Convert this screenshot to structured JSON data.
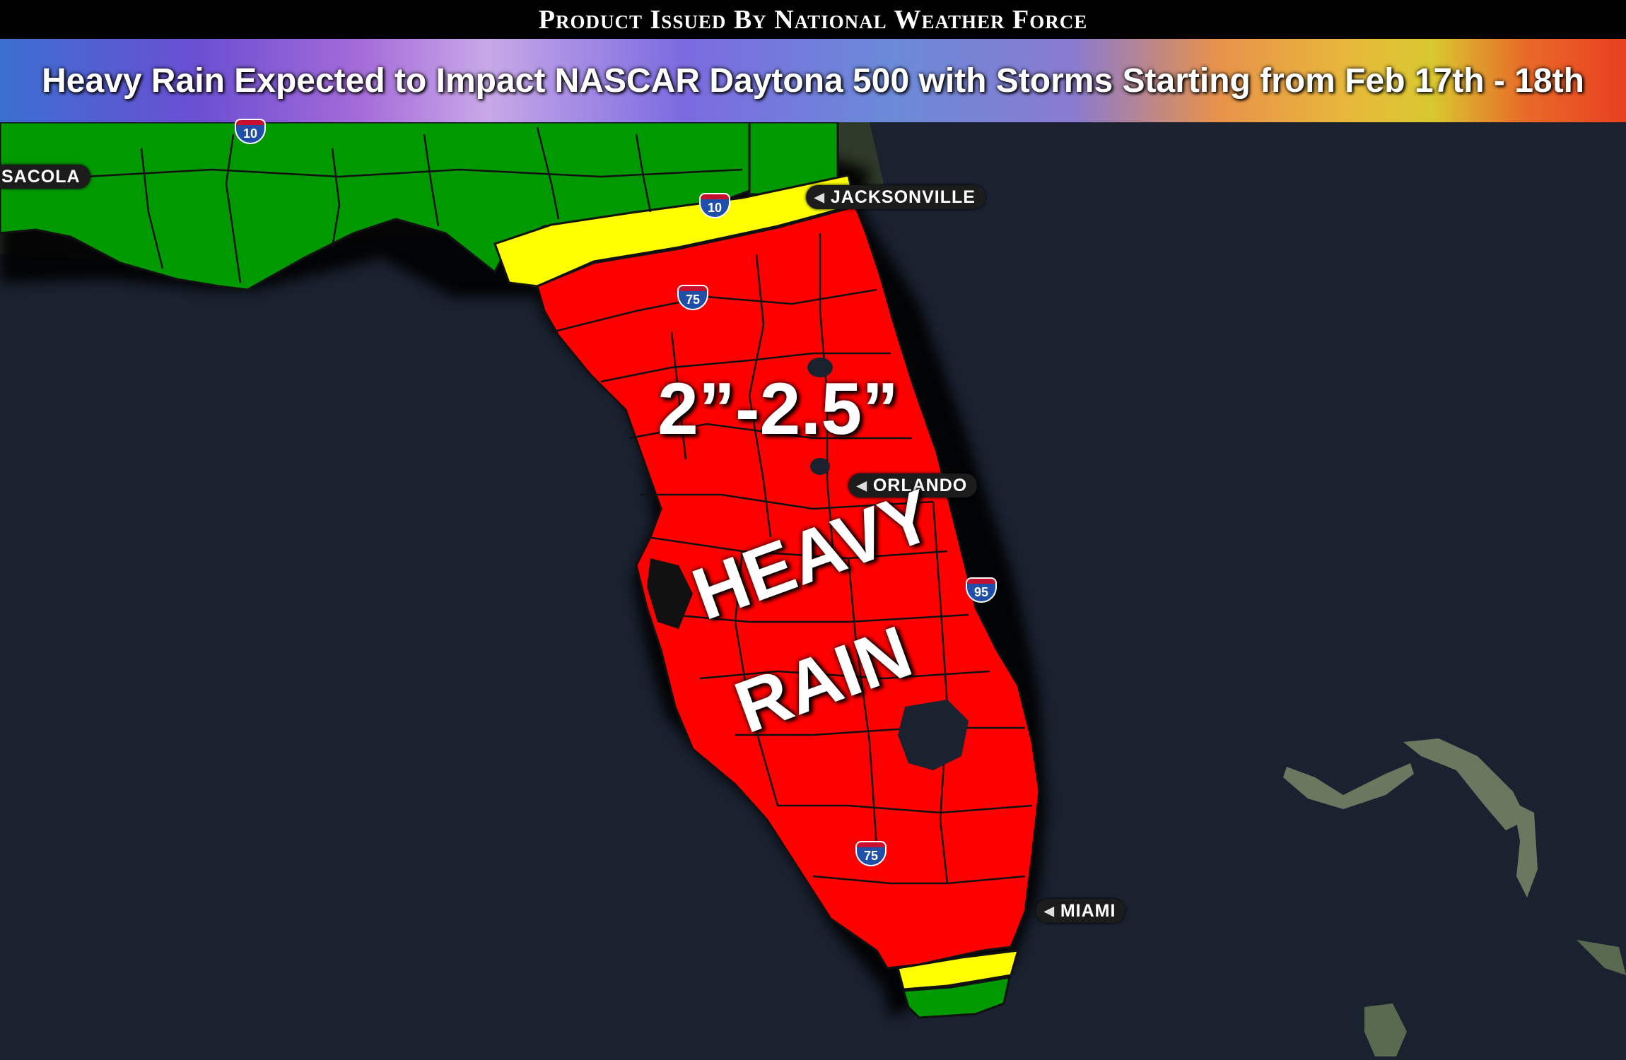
{
  "header": {
    "issuer": "Product Issued By National Weather Force",
    "headline": "Heavy Rain Expected to Impact NASCAR Daytona 500 with Storms Starting from Feb 17th - 18th"
  },
  "map": {
    "amount_label": "2”-2.5”",
    "heavy_rain_line1": "HEAVY",
    "heavy_rain_line2": "RAIN",
    "colors": {
      "water": "#1a2230",
      "land_dark": "#2b3a2c",
      "heavy_rain": "#ff0000",
      "moderate_rain": "#ffff00",
      "light_rain": "#009900",
      "borders": "#111111"
    },
    "cities": [
      {
        "id": "pensacola",
        "label": "SACOLA"
      },
      {
        "id": "jacksonville",
        "label": "JACKSONVILLE"
      },
      {
        "id": "orlando",
        "label": "ORLANDO"
      },
      {
        "id": "miami",
        "label": "MIAMI"
      }
    ],
    "highways": [
      {
        "id": "i10-west",
        "label": "10"
      },
      {
        "id": "i10-east",
        "label": "10"
      },
      {
        "id": "i75-north",
        "label": "75"
      },
      {
        "id": "i95",
        "label": "95"
      },
      {
        "id": "i75-south",
        "label": "75"
      }
    ]
  }
}
